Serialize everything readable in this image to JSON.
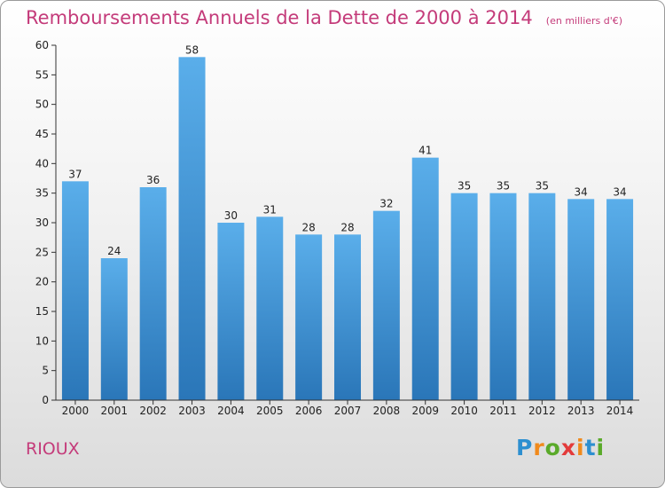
{
  "chart_data": {
    "type": "bar",
    "title": "Remboursements Annuels de la Dette de 2000 à 2014",
    "subtitle": "(en milliers d'€)",
    "categories": [
      "2000",
      "2001",
      "2002",
      "2003",
      "2004",
      "2005",
      "2006",
      "2007",
      "2008",
      "2009",
      "2010",
      "2011",
      "2012",
      "2013",
      "2014"
    ],
    "values": [
      37,
      24,
      36,
      58,
      30,
      31,
      28,
      28,
      32,
      41,
      35,
      35,
      35,
      34,
      34
    ],
    "ylim": [
      0,
      60
    ],
    "yticks": [
      0,
      5,
      10,
      15,
      20,
      25,
      30,
      35,
      40,
      45,
      50,
      55,
      60
    ],
    "grid": false,
    "xlabel": "",
    "ylabel": ""
  },
  "commune": "RIOUX",
  "logo": {
    "letters": [
      "P",
      "r",
      "o",
      "x",
      "i",
      "t",
      "i"
    ],
    "colors": [
      "#2d8fd0",
      "#f08a1c",
      "#5aaa2a",
      "#e33b3b",
      "#f08a1c",
      "#2d8fd0",
      "#5aaa2a"
    ]
  },
  "colors": {
    "bar_light": "#5aaeea",
    "bar_dark": "#2a76b8",
    "title": "#c43b7a"
  }
}
